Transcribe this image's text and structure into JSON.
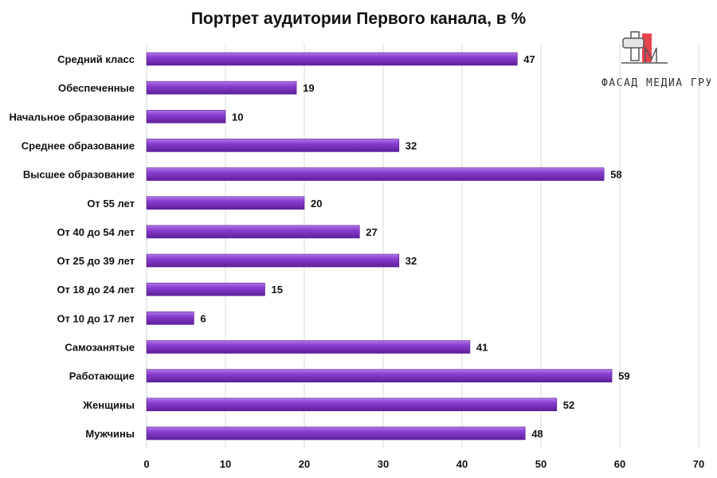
{
  "logo": {
    "text": "ФАСАД МЕДИА ГРУПП"
  },
  "colors": {
    "bar": "#8a3fd0",
    "bar_dark": "#5e1f9a",
    "bar_light": "#b07ae6",
    "grid": "#d9d9d9"
  },
  "chart_data": {
    "type": "bar",
    "orientation": "horizontal",
    "title": "Портрет аудитории Первого канала, в %",
    "categories": [
      "Средний класс",
      "Обеспеченные",
      "Начальное образование",
      "Среднее образование",
      "Высшее образование",
      "От 55 лет",
      "От 40 до 54 лет",
      "От 25 до 39 лет",
      "От 18 до 24 лет",
      "От 10 до 17 лет",
      "Самозанятые",
      "Работающие",
      "Женщины",
      "Мужчины"
    ],
    "values": [
      47,
      19,
      10,
      32,
      58,
      20,
      27,
      32,
      15,
      6,
      41,
      59,
      52,
      48
    ],
    "xlim": [
      0,
      70
    ],
    "xticks": [
      0,
      10,
      20,
      30,
      40,
      50,
      60,
      70
    ],
    "grid": true,
    "data_labels": true
  }
}
